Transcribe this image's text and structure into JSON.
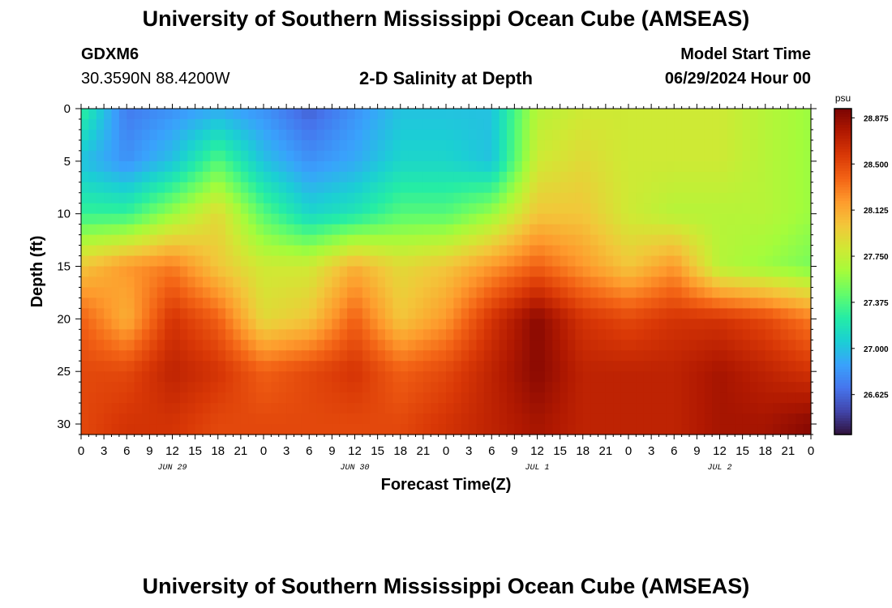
{
  "page": {
    "title": "University of Southern Mississippi Ocean Cube (AMSEAS)",
    "station_id": "GDXM6",
    "coordinates": "30.3590N  88.4200W",
    "plot_title": "2-D Salinity at Depth",
    "model_start_label": "Model Start Time",
    "model_start_value": "06/29/2024 Hour 00",
    "footer_title": "University of Southern Mississippi Ocean Cube (AMSEAS)"
  },
  "chart_data": {
    "type": "heatmap",
    "title": "2-D Salinity at Depth",
    "xlabel": "Forecast Time(Z)",
    "ylabel": "Depth (ft)",
    "x_range_hours": [
      0,
      96
    ],
    "y_range_ft": [
      0,
      31
    ],
    "y_inverted": true,
    "x_tick_labels": [
      "0",
      "3",
      "6",
      "9",
      "12",
      "15",
      "18",
      "21",
      "0",
      "3",
      "6",
      "9",
      "12",
      "15",
      "18",
      "21",
      "0",
      "3",
      "6",
      "9",
      "12",
      "15",
      "18",
      "21",
      "0",
      "3",
      "6",
      "9",
      "12",
      "15",
      "18",
      "21",
      "0"
    ],
    "x_tick_step_hours": 3,
    "day_labels": [
      {
        "label": "JUN 29",
        "hour": 12
      },
      {
        "label": "JUN 30",
        "hour": 36
      },
      {
        "label": "JUL 1",
        "hour": 60
      },
      {
        "label": "JUL 2",
        "hour": 84
      }
    ],
    "y_ticks": [
      0,
      5,
      10,
      15,
      20,
      25,
      30
    ],
    "colorbar": {
      "unit": "psu",
      "min": 26.3,
      "max": 28.95,
      "labels": [
        "28.875",
        "28.500",
        "28.125",
        "27.750",
        "27.375",
        "27.000",
        "26.625"
      ],
      "colors": [
        "#30123b",
        "#4145ab",
        "#4675ed",
        "#39a2fc",
        "#1bcfd4",
        "#24eca6",
        "#61fc6c",
        "#a4fc3b",
        "#d1e834",
        "#f3c63a",
        "#fe9b2d",
        "#f36315",
        "#d93806",
        "#b11901",
        "#7a0403"
      ]
    },
    "depth_layers_ft": [
      0,
      5,
      10,
      15,
      20,
      25,
      30
    ],
    "time_columns_hours": [
      0,
      6,
      12,
      18,
      24,
      30,
      36,
      42,
      48,
      54,
      60,
      66,
      72,
      78,
      84,
      90,
      96
    ],
    "salinity_grid_psu": [
      [
        27.3,
        26.7,
        26.8,
        26.9,
        26.8,
        26.6,
        26.8,
        27.0,
        27.0,
        27.0,
        27.7,
        27.8,
        27.8,
        27.8,
        27.8,
        27.7,
        27.6
      ],
      [
        27.0,
        26.8,
        27.0,
        27.4,
        27.0,
        26.8,
        26.9,
        27.1,
        27.1,
        27.0,
        27.8,
        27.9,
        27.8,
        27.8,
        27.8,
        27.7,
        27.6
      ],
      [
        27.3,
        27.3,
        27.6,
        27.9,
        27.4,
        27.1,
        27.2,
        27.4,
        27.4,
        27.6,
        28.0,
        28.0,
        27.8,
        27.7,
        27.7,
        27.7,
        27.6
      ],
      [
        28.0,
        28.2,
        28.3,
        28.0,
        27.8,
        27.8,
        28.1,
        27.9,
        28.0,
        28.2,
        28.4,
        28.2,
        28.0,
        28.2,
        27.7,
        27.6,
        27.5
      ],
      [
        28.4,
        28.1,
        28.6,
        28.4,
        27.9,
        28.0,
        28.4,
        28.0,
        28.2,
        28.6,
        28.9,
        28.6,
        28.5,
        28.6,
        28.6,
        28.5,
        28.3
      ],
      [
        28.5,
        28.5,
        28.7,
        28.6,
        28.4,
        28.5,
        28.6,
        28.4,
        28.5,
        28.7,
        28.9,
        28.7,
        28.7,
        28.7,
        28.8,
        28.7,
        28.6
      ],
      [
        28.5,
        28.6,
        28.6,
        28.5,
        28.5,
        28.5,
        28.5,
        28.5,
        28.6,
        28.7,
        28.8,
        28.7,
        28.7,
        28.7,
        28.8,
        28.8,
        28.9
      ]
    ]
  }
}
